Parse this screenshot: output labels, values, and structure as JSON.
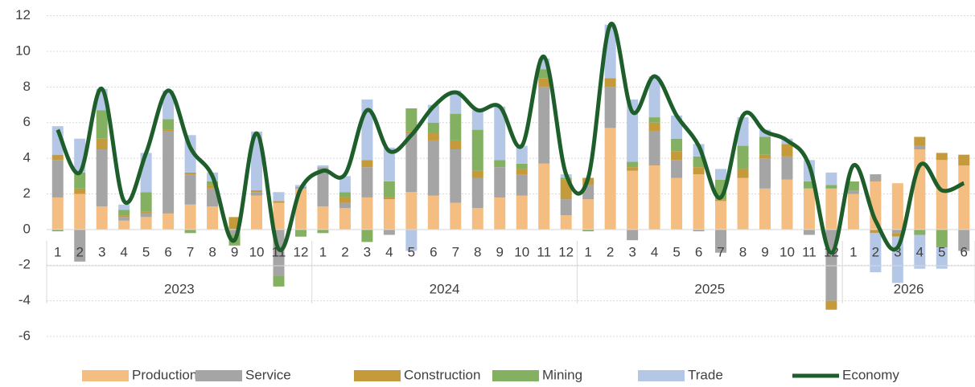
{
  "chart_data": {
    "type": "stacked_bar_line",
    "groups": [
      {
        "label": "2023",
        "categories": [
          "1",
          "2",
          "3",
          "4",
          "5",
          "6",
          "7",
          "8",
          "9",
          "10",
          "11",
          "12"
        ]
      },
      {
        "label": "2024",
        "categories": [
          "1",
          "2",
          "3",
          "4",
          "5",
          "6",
          "7",
          "8",
          "9",
          "10",
          "11",
          "12"
        ]
      },
      {
        "label": "2025",
        "categories": [
          "1",
          "2",
          "3",
          "4",
          "5",
          "6",
          "7",
          "8",
          "9",
          "10",
          "11",
          "12"
        ]
      },
      {
        "label": "2026",
        "categories": [
          "1",
          "2",
          "3",
          "4",
          "5",
          "6"
        ]
      }
    ],
    "series": [
      {
        "name": "Production",
        "color": "#f4be82",
        "kind": "bar",
        "values": [
          1.8,
          2.0,
          1.3,
          0.5,
          0.7,
          0.9,
          1.4,
          1.3,
          0,
          1.9,
          1.5,
          2.3,
          1.3,
          1.2,
          1.8,
          1.7,
          2.1,
          1.9,
          1.5,
          1.2,
          1.8,
          1.9,
          3.7,
          0.8,
          1.7,
          5.7,
          3.3,
          3.6,
          2.9,
          3.1,
          1.6,
          2.9,
          2.3,
          2.8,
          2.3,
          2.3,
          2.0,
          2.7,
          2.6,
          4.5,
          3.9,
          3.6
        ]
      },
      {
        "name": "Service",
        "color": "#a5a5a5",
        "kind": "bar",
        "values": [
          2.1,
          -1.8,
          3.2,
          0.2,
          0.2,
          4.6,
          1.7,
          1.0,
          -0.3,
          0.2,
          -2.6,
          0.1,
          2.2,
          0.3,
          1.7,
          -0.3,
          3.3,
          3.1,
          3.0,
          1.7,
          1.7,
          1.2,
          4.3,
          0.9,
          0.8,
          2.3,
          -0.6,
          1.9,
          1.0,
          -0.1,
          -1.3,
          0,
          1.7,
          1.3,
          -0.3,
          -4.0,
          0.2,
          0.4,
          -0.2,
          0.2,
          0,
          -1.2
        ]
      },
      {
        "name": "Construction",
        "color": "#c49a3a",
        "kind": "bar",
        "values": [
          0.3,
          0.3,
          0.6,
          0.1,
          0.1,
          0.1,
          0.1,
          0.2,
          0.7,
          0.1,
          0.1,
          0,
          0,
          0.3,
          0.4,
          0.1,
          0.1,
          0.4,
          0.5,
          0.4,
          0,
          0.3,
          0.5,
          1.1,
          0.4,
          0.5,
          0.2,
          0.5,
          0.5,
          0.4,
          0.1,
          0.5,
          0.2,
          0.7,
          0,
          -0.5,
          0,
          -0.2,
          -0.2,
          0.5,
          0.4,
          0.6
        ]
      },
      {
        "name": "Mining",
        "color": "#84b062",
        "kind": "bar",
        "values": [
          -0.1,
          0.9,
          1.6,
          0.3,
          1.1,
          0.6,
          -0.2,
          0.2,
          -0.6,
          0,
          -0.6,
          -0.4,
          -0.2,
          0.3,
          -0.7,
          0.9,
          1.3,
          0.6,
          1.5,
          2.3,
          0.4,
          0.3,
          0.5,
          0.1,
          -0.1,
          0,
          0.3,
          0.3,
          0.7,
          0.6,
          1.1,
          1.3,
          1.0,
          0,
          0.4,
          0.2,
          0.5,
          0,
          0,
          -0.3,
          -1.0,
          0
        ]
      },
      {
        "name": "Trade",
        "color": "#b4c7e7",
        "kind": "bar",
        "values": [
          1.6,
          1.9,
          1.2,
          0.3,
          2.2,
          1.6,
          2.1,
          0.5,
          0,
          3.3,
          0.5,
          0.1,
          0.1,
          0.9,
          3.4,
          1.9,
          -1.2,
          1.0,
          1.3,
          1.1,
          3.0,
          1.0,
          0.6,
          0.2,
          0,
          3.0,
          3.5,
          2.3,
          1.3,
          0.7,
          0.6,
          1.6,
          0.4,
          0.3,
          1.2,
          0.7,
          0,
          -2.2,
          -2.6,
          -1.9,
          -1.2,
          0
        ]
      },
      {
        "name": "Economy",
        "color": "#1e5e2a",
        "kind": "line",
        "values": [
          5.6,
          3.2,
          7.9,
          1.6,
          4.3,
          7.8,
          4.6,
          3.0,
          -0.6,
          5.4,
          -1.1,
          2.3,
          3.3,
          3.1,
          6.7,
          4.4,
          5.3,
          6.9,
          7.7,
          6.7,
          6.9,
          4.7,
          9.7,
          3.1,
          2.9,
          11.5,
          6.6,
          8.6,
          6.4,
          4.7,
          1.8,
          6.4,
          5.5,
          5.0,
          3.6,
          -1.3,
          3.6,
          0.5,
          -1.0,
          3.6,
          2.2,
          2.6
        ]
      }
    ],
    "ylim": [
      -6,
      12
    ],
    "yticks": [
      -6,
      -4,
      -2,
      0,
      2,
      4,
      6,
      8,
      10,
      12
    ],
    "grid": true,
    "legend": "bottom"
  }
}
